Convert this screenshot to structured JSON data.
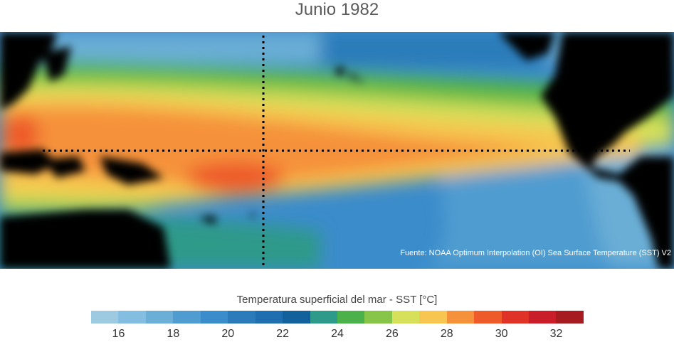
{
  "title": "Junio 1982",
  "source": "Fuente: NOAA Optimum Interpolation (OI) Sea Surface Temperature (SST) V2",
  "colorbar": {
    "title": "Temperatura superficial del mar - SST  [°C]",
    "min": 15,
    "max": 33,
    "colors": [
      "#9ecae1",
      "#83bde0",
      "#6baed6",
      "#4f9cd0",
      "#3b8ccb",
      "#2b7bba",
      "#1f6fb0",
      "#12609c",
      "#2e9a8a",
      "#4bb14b",
      "#86c44a",
      "#d7e05a",
      "#f6c650",
      "#f5913b",
      "#ee5a2a",
      "#df3327",
      "#c91d2a",
      "#a61b1f"
    ],
    "ticks": [
      "16",
      "18",
      "20",
      "22",
      "24",
      "26",
      "28",
      "30",
      "32"
    ]
  }
}
